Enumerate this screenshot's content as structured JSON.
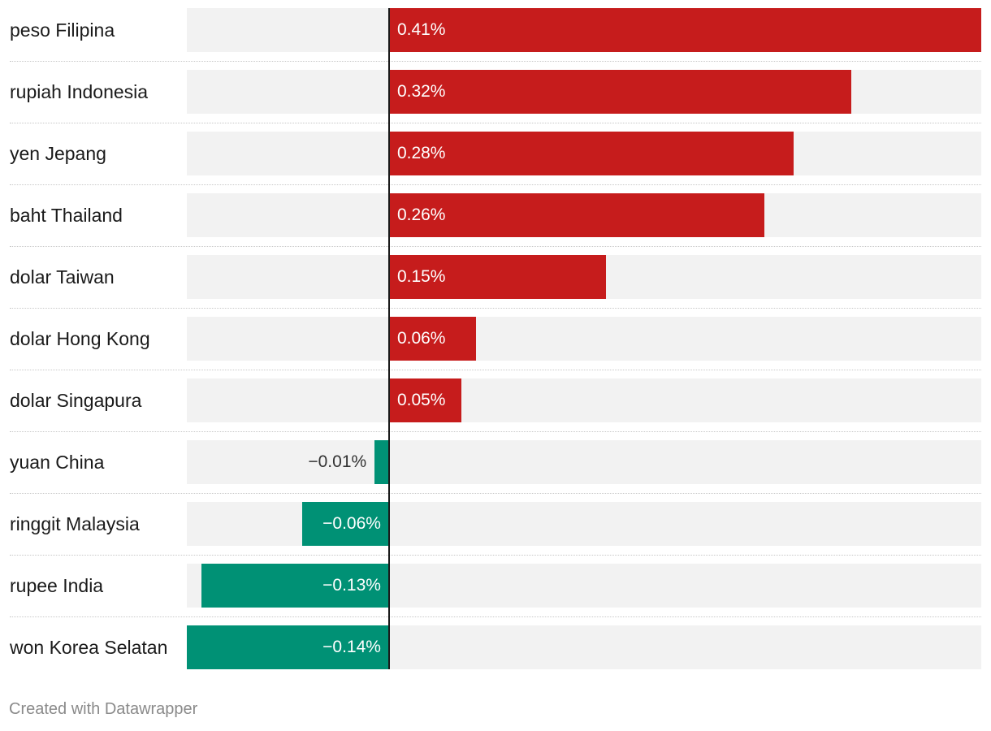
{
  "chart_data": {
    "type": "bar",
    "orientation": "horizontal",
    "categories": [
      "peso Filipina",
      "rupiah Indonesia",
      "yen Jepang",
      "baht Thailand",
      "dolar Taiwan",
      "dolar Hong Kong",
      "dolar Singapura",
      "yuan China",
      "ringgit Malaysia",
      "rupee India",
      "won Korea Selatan"
    ],
    "values": [
      0.41,
      0.32,
      0.28,
      0.26,
      0.15,
      0.06,
      0.05,
      -0.01,
      -0.06,
      -0.13,
      -0.14
    ],
    "value_labels": [
      "0.41%",
      "0.32%",
      "0.28%",
      "0.26%",
      "0.15%",
      "0.06%",
      "0.05%",
      "−0.01%",
      "−0.06%",
      "−0.13%",
      "−0.14%"
    ],
    "xlim": [
      -0.14,
      0.41
    ],
    "title": "",
    "xlabel": "",
    "ylabel": "",
    "grid": false
  },
  "colors": {
    "positive": "#c61c1c",
    "negative": "#009175",
    "track": "#f2f2f2"
  },
  "footer": {
    "credit": "Created with Datawrapper"
  }
}
